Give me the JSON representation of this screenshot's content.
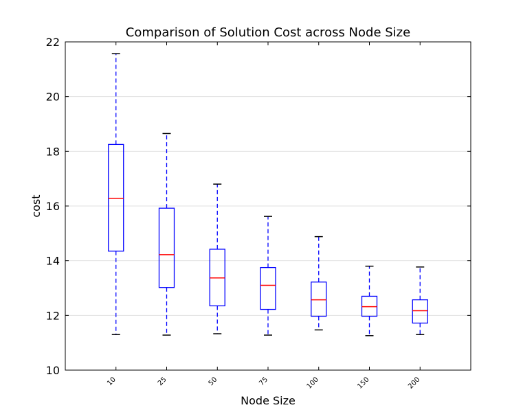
{
  "chart_data": {
    "type": "box",
    "title": "Comparison of Solution Cost across Node Size",
    "xlabel": "Node Size",
    "ylabel": "cost",
    "ylim": [
      10,
      22
    ],
    "yticks": [
      "10",
      "12",
      "14",
      "16",
      "18",
      "20",
      "22"
    ],
    "grid": "horizontal",
    "categories": [
      "10",
      "25",
      "50",
      "75",
      "100",
      "150",
      "200"
    ],
    "boxes": [
      {
        "whisker_low": 11.3,
        "q1": 14.35,
        "median": 16.28,
        "q3": 18.25,
        "whisker_high": 21.57
      },
      {
        "whisker_low": 11.28,
        "q1": 13.02,
        "median": 14.22,
        "q3": 15.92,
        "whisker_high": 18.65
      },
      {
        "whisker_low": 11.33,
        "q1": 12.35,
        "median": 13.37,
        "q3": 14.42,
        "whisker_high": 16.8
      },
      {
        "whisker_low": 11.28,
        "q1": 12.22,
        "median": 13.1,
        "q3": 13.75,
        "whisker_high": 15.62
      },
      {
        "whisker_low": 11.47,
        "q1": 11.97,
        "median": 12.57,
        "q3": 13.22,
        "whisker_high": 14.88
      },
      {
        "whisker_low": 11.26,
        "q1": 11.97,
        "median": 12.32,
        "q3": 12.7,
        "whisker_high": 13.8
      },
      {
        "whisker_low": 11.3,
        "q1": 11.72,
        "median": 12.17,
        "q3": 12.57,
        "whisker_high": 13.77
      }
    ],
    "colors": {
      "box": "#0000ff",
      "median": "#ff0000",
      "whisker": "#0000ff",
      "cap": "#000000",
      "grid": "#e0e0e0"
    }
  }
}
